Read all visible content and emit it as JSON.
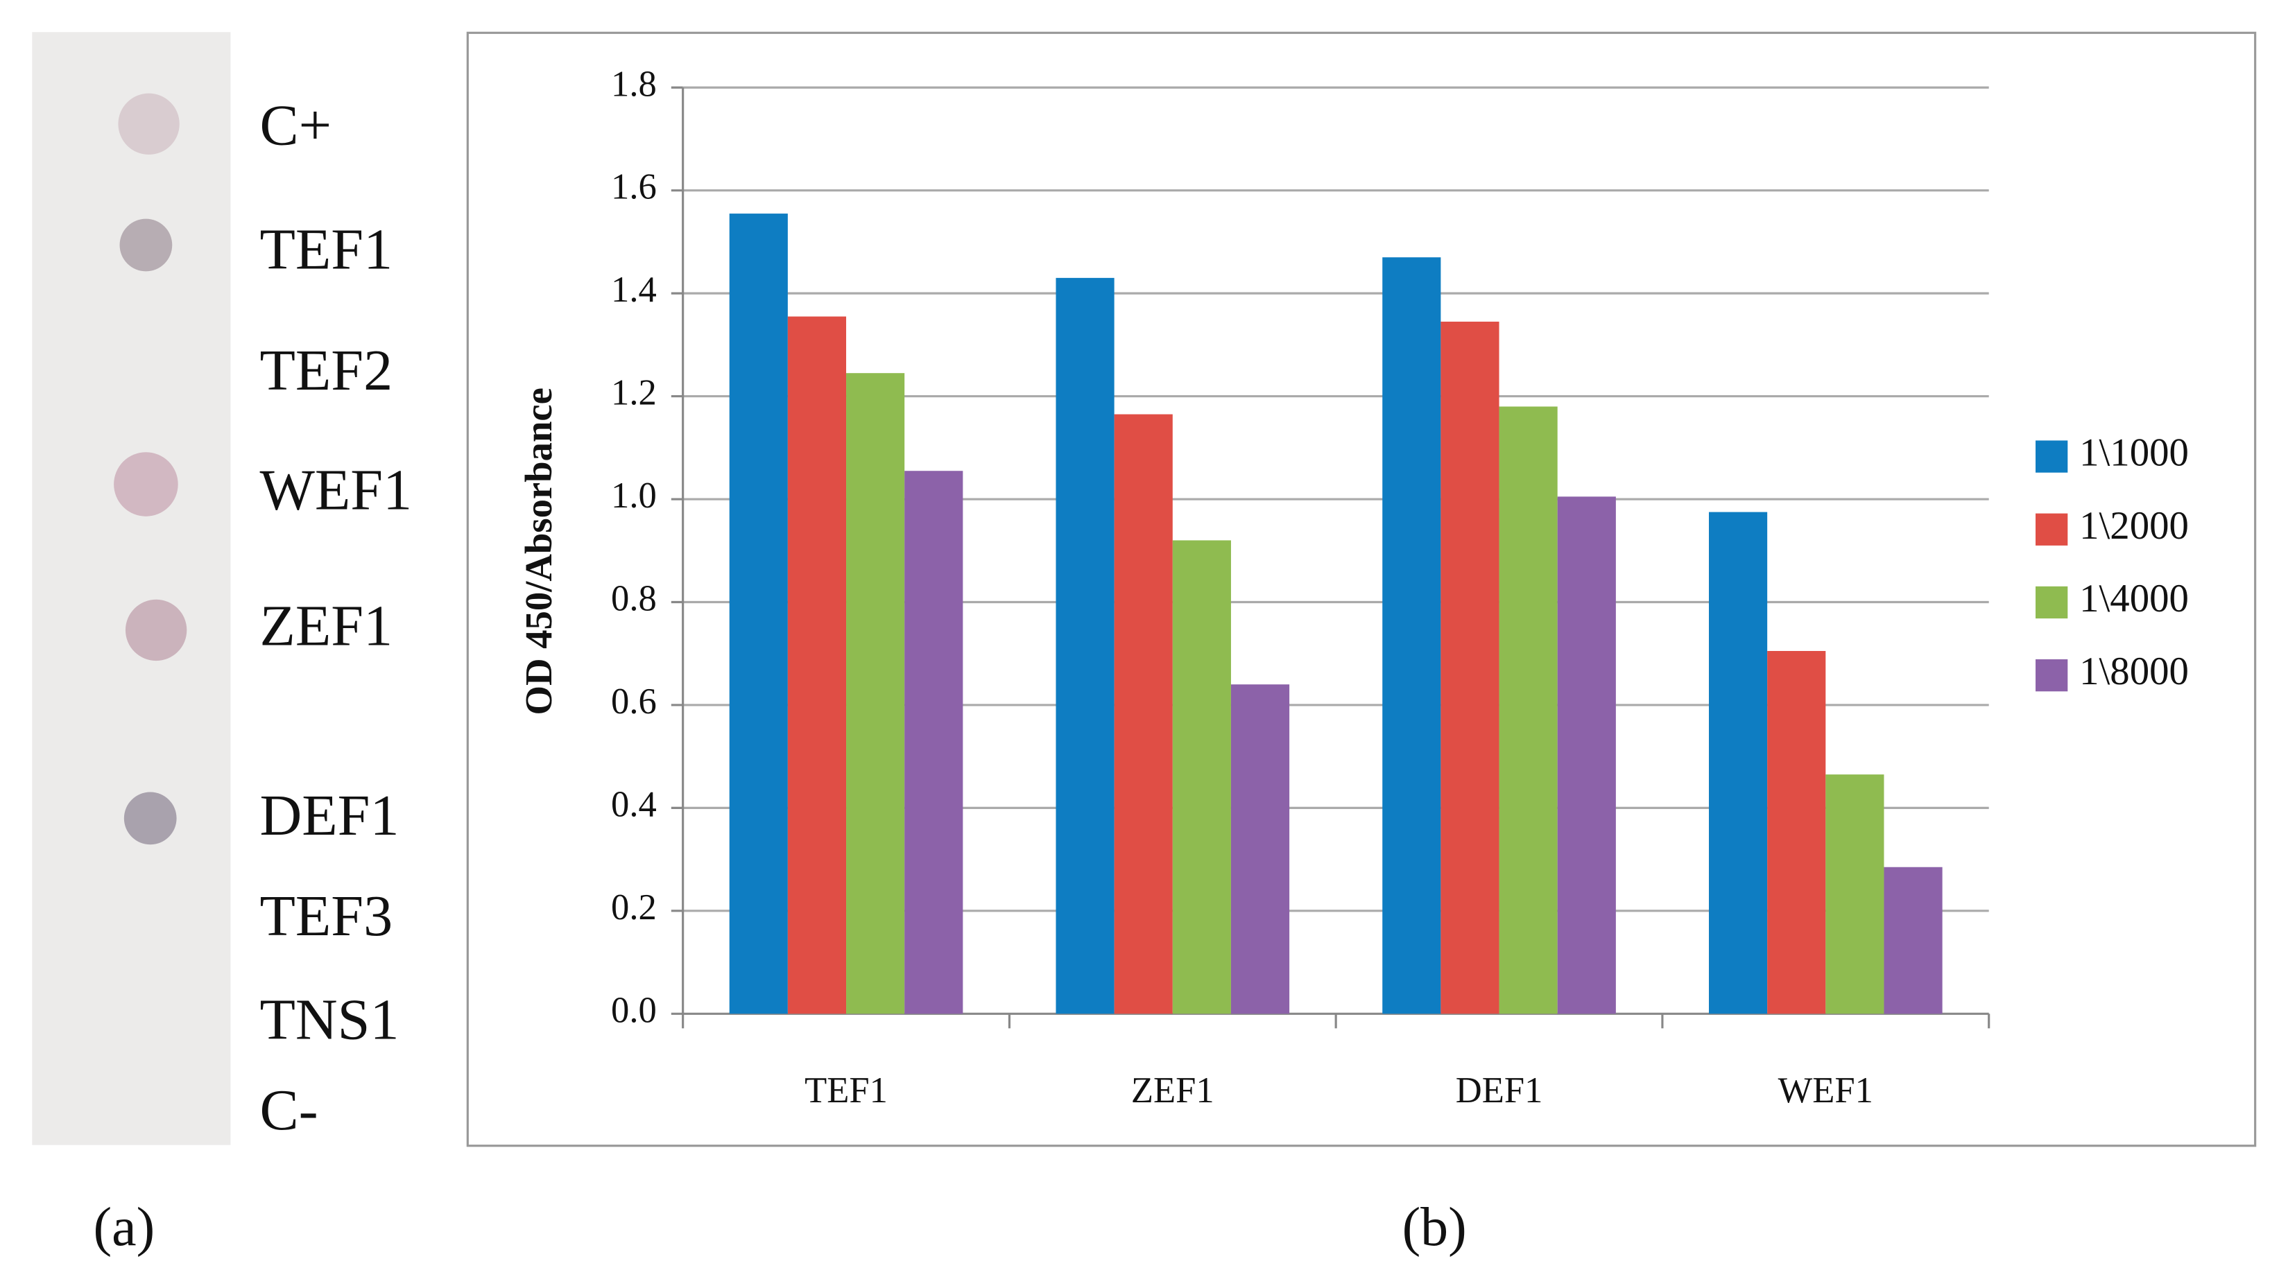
{
  "blot": {
    "labels": [
      "C+",
      "TEF1",
      "TEF2",
      "WEF1",
      "ZEF1",
      "DEF1",
      "TEF3",
      "TNS1",
      "C-"
    ]
  },
  "panel_labels": [
    "(a)",
    "(b)"
  ],
  "chart_data": {
    "type": "bar",
    "y_label": "OD 450/Absorbance",
    "categories": [
      "TEF1",
      "ZEF1",
      "DEF1",
      "WEF1"
    ],
    "series": [
      {
        "name": "1\\1000",
        "color": "#0e7dc2",
        "values": [
          1.555,
          1.43,
          1.47,
          0.975
        ]
      },
      {
        "name": "1\\2000",
        "color": "#e04e45",
        "values": [
          1.355,
          1.165,
          1.345,
          0.705
        ]
      },
      {
        "name": "1\\4000",
        "color": "#8fbb50",
        "values": [
          1.245,
          0.92,
          1.18,
          0.465
        ]
      },
      {
        "name": "1\\8000",
        "color": "#8c62a9",
        "values": [
          1.055,
          0.64,
          1.005,
          0.285
        ]
      }
    ],
    "ylim": [
      0,
      1.8
    ],
    "yticks": [
      {
        "value": 0,
        "label": "0.0"
      },
      0.2,
      0.4,
      0.6,
      0.8,
      {
        "value": 1,
        "label": "1.0"
      },
      1.2,
      1.4,
      1.6,
      1.8
    ],
    "grid": true,
    "legend": "right"
  }
}
